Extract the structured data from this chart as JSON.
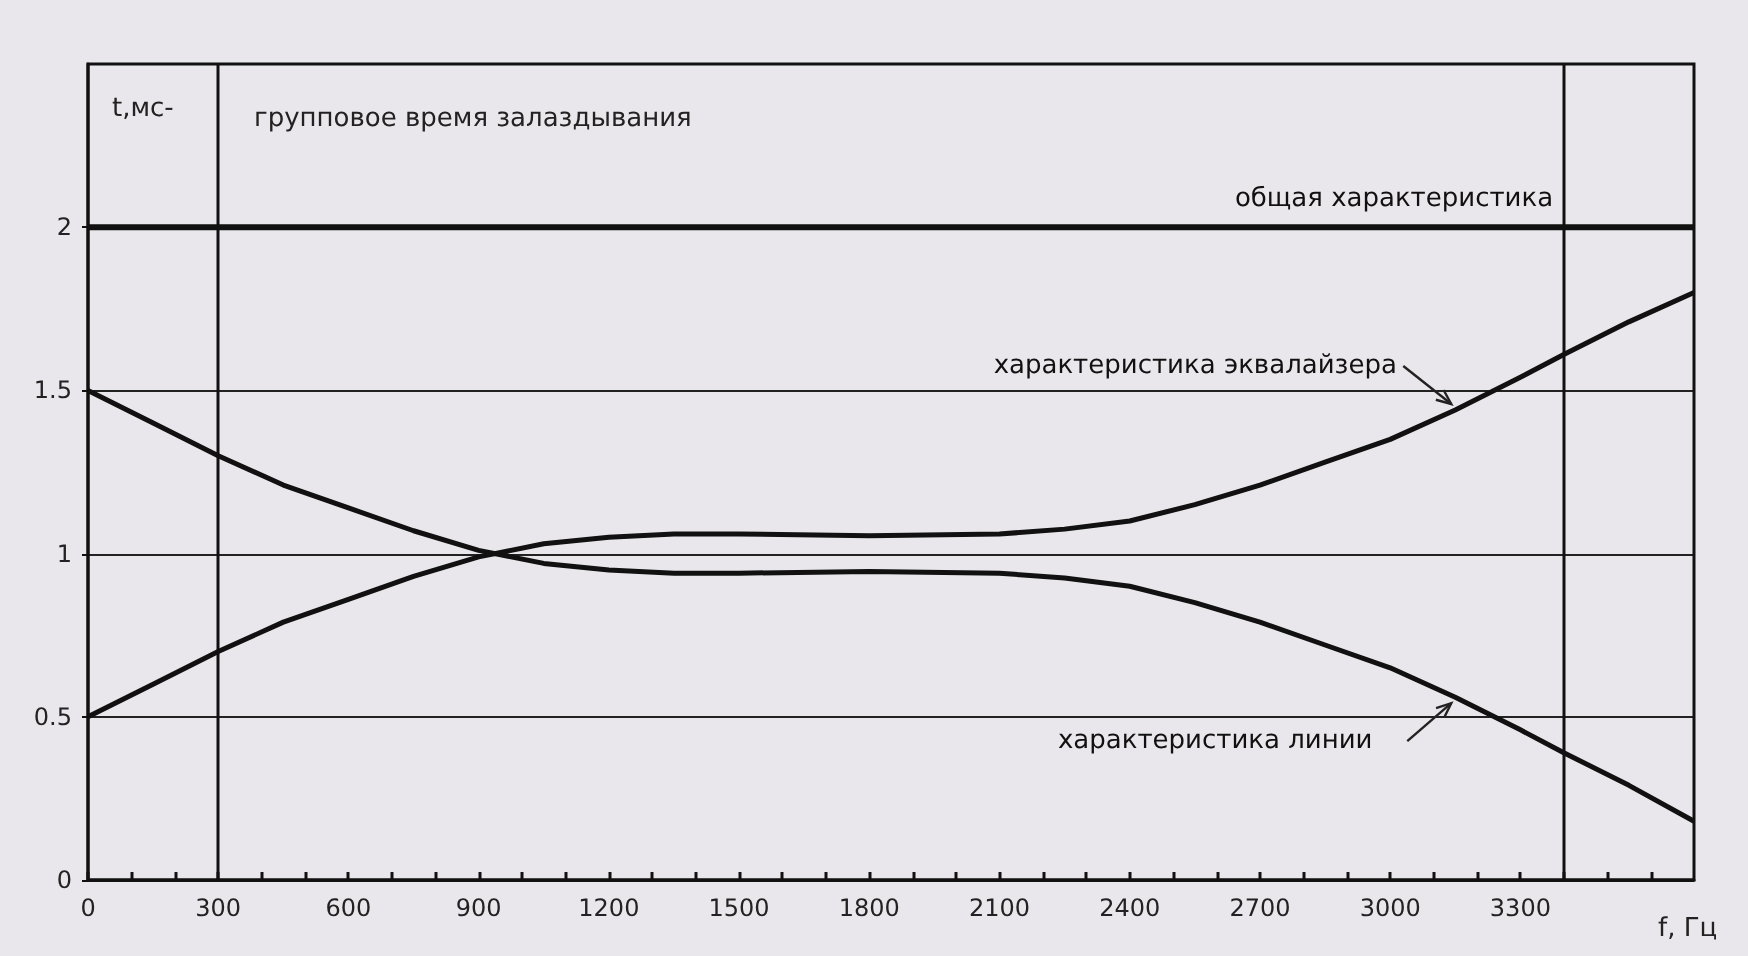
{
  "chart_data": {
    "type": "line",
    "title": "групповое время залаздывания",
    "ylabel": "t,мс-",
    "xlabel": "f, Гц",
    "xlim": [
      0,
      3700
    ],
    "ylim": [
      0,
      2.5
    ],
    "xticks": [
      0,
      {
        "value": 100,
        "label": null
      },
      {
        "value": 200,
        "label": null
      },
      300,
      {
        "value": 400,
        "label": null
      },
      {
        "value": 500,
        "label": null
      },
      600,
      {
        "value": 700,
        "label": null
      },
      {
        "value": 800,
        "label": null
      },
      900,
      {
        "value": 1000,
        "label": null
      },
      {
        "value": 1100,
        "label": null
      },
      1200,
      {
        "value": 1300,
        "label": null
      },
      {
        "value": 1400,
        "label": null
      },
      1500,
      {
        "value": 1600,
        "label": null
      },
      {
        "value": 1700,
        "label": null
      },
      1800,
      {
        "value": 1900,
        "label": null
      },
      {
        "value": 2000,
        "label": null
      },
      2100,
      {
        "value": 2200,
        "label": null
      },
      {
        "value": 2300,
        "label": null
      },
      2400,
      {
        "value": 2500,
        "label": null
      },
      {
        "value": 2600,
        "label": null
      },
      2700,
      {
        "value": 2800,
        "label": null
      },
      {
        "value": 2900,
        "label": null
      },
      3000,
      {
        "value": 3100,
        "label": null
      },
      {
        "value": 3200,
        "label": null
      },
      3300,
      {
        "value": 3400,
        "label": null
      },
      {
        "value": 3500,
        "label": null
      },
      {
        "value": 3600,
        "label": null
      }
    ],
    "yticks": [
      0,
      0.5,
      1,
      1.5,
      2
    ],
    "grid": "y",
    "marker": "none",
    "line_style": "solid",
    "series": [
      {
        "name": "общая характеристика",
        "color": "#111111",
        "x": [
          0,
          3700
        ],
        "values": [
          2,
          2
        ]
      },
      {
        "name": "характеристика эквалайзера",
        "color": "#111111",
        "x": [
          0,
          150,
          300,
          450,
          600,
          750,
          900,
          1050,
          1200,
          1350,
          1500,
          1800,
          2100,
          2250,
          2400,
          2550,
          2700,
          2850,
          3000,
          3150,
          3300,
          3400,
          3550,
          3700
        ],
        "values": [
          0.5,
          0.6,
          0.7,
          0.79,
          0.86,
          0.93,
          0.99,
          1.03,
          1.05,
          1.06,
          1.06,
          1.055,
          1.06,
          1.075,
          1.1,
          1.15,
          1.21,
          1.28,
          1.35,
          1.44,
          1.54,
          1.61,
          1.71,
          1.8
        ]
      },
      {
        "name": "характеристика линии",
        "color": "#111111",
        "x": [
          0,
          150,
          300,
          450,
          600,
          750,
          900,
          1050,
          1200,
          1350,
          1500,
          1800,
          2100,
          2250,
          2400,
          2550,
          2700,
          2850,
          3000,
          3150,
          3300,
          3400,
          3550,
          3700
        ],
        "values": [
          1.5,
          1.4,
          1.3,
          1.21,
          1.14,
          1.07,
          1.01,
          0.97,
          0.95,
          0.94,
          0.94,
          0.945,
          0.94,
          0.925,
          0.9,
          0.85,
          0.79,
          0.72,
          0.65,
          0.56,
          0.46,
          0.39,
          0.29,
          0.18
        ]
      }
    ],
    "ref_lines": [
      {
        "axis": "x",
        "value": 300,
        "color": "#111111"
      },
      {
        "axis": "x",
        "value": 3400,
        "color": "#111111"
      }
    ]
  }
}
